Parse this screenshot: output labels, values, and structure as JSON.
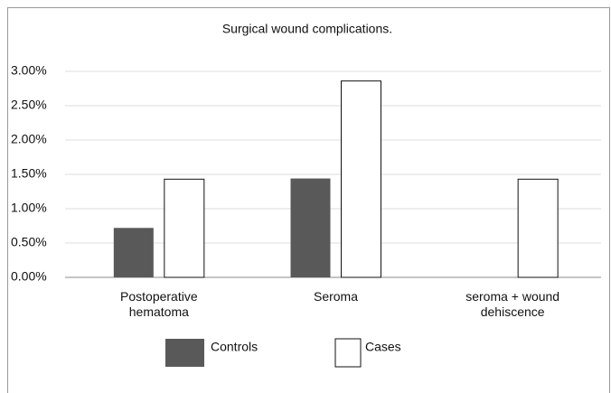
{
  "chart_data": {
    "type": "bar",
    "title": "Surgical wound complications.",
    "categories": [
      "Postoperative hematoma",
      "Seroma",
      "seroma + wound dehiscence"
    ],
    "series": [
      {
        "name": "Controls",
        "color": "#595959",
        "values": [
          0.72,
          1.44,
          0
        ]
      },
      {
        "name": "Cases",
        "color": "#ffffff",
        "values": [
          1.43,
          2.86,
          1.43
        ]
      }
    ],
    "ylim": [
      0,
      3
    ],
    "yticks": [
      {
        "value": 0,
        "label": "0.00%"
      },
      {
        "value": 0.5,
        "label": "0.50%"
      },
      {
        "value": 1,
        "label": "1.00%"
      },
      {
        "value": 1.5,
        "label": "1.50%"
      },
      {
        "value": 2,
        "label": "2.00%"
      },
      {
        "value": 2.5,
        "label": "2.50%"
      },
      {
        "value": 3,
        "label": "3.00%"
      }
    ],
    "grid": true
  }
}
